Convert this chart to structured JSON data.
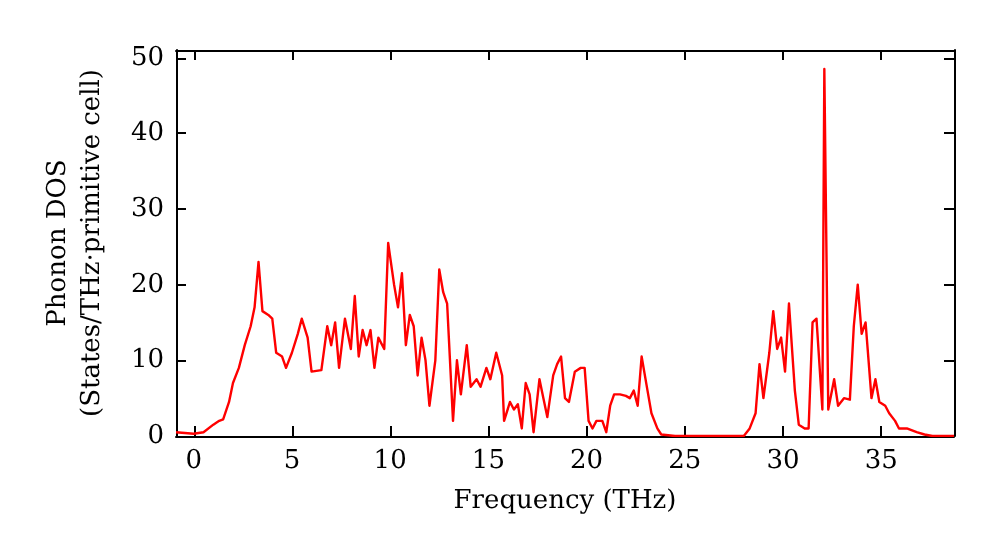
{
  "chart_data": {
    "type": "line",
    "xlabel": "Frequency (THz)",
    "ylabel": "Phonon DOS\n(States/THz·primitive cell)",
    "xlim": [
      -0.9,
      38.7
    ],
    "ylim": [
      0,
      51
    ],
    "xticks": [
      0,
      5,
      10,
      15,
      20,
      25,
      30,
      35
    ],
    "yticks": [
      0,
      10,
      20,
      30,
      40,
      50
    ],
    "grid": false,
    "marker": "none",
    "line_style": "solid",
    "x": [
      -0.9,
      0,
      0.5,
      1,
      1.3,
      1.5,
      1.8,
      2,
      2.3,
      2.6,
      2.9,
      3.1,
      3.3,
      3.5,
      3.8,
      4,
      4.2,
      4.5,
      4.7,
      5,
      5.3,
      5.5,
      5.8,
      6,
      6.5,
      6.8,
      7,
      7.2,
      7.4,
      7.7,
      8,
      8.2,
      8.4,
      8.6,
      8.8,
      9,
      9.2,
      9.4,
      9.7,
      9.9,
      10.2,
      10.4,
      10.6,
      10.8,
      11,
      11.2,
      11.4,
      11.6,
      11.8,
      12,
      12.3,
      12.5,
      12.7,
      12.9,
      13.2,
      13.4,
      13.6,
      13.9,
      14.1,
      14.4,
      14.6,
      14.9,
      15.1,
      15.4,
      15.7,
      15.8,
      16.1,
      16.3,
      16.5,
      16.7,
      16.9,
      17.1,
      17.3,
      17.6,
      17.8,
      18,
      18.3,
      18.5,
      18.7,
      18.9,
      19.1,
      19.4,
      19.7,
      19.9,
      20.1,
      20.3,
      20.5,
      20.8,
      21,
      21.2,
      21.4,
      21.7,
      22,
      22.2,
      22.4,
      22.6,
      22.8,
      23.1,
      23.3,
      23.6,
      23.8,
      24.5,
      28,
      28.3,
      28.6,
      28.8,
      29,
      29.3,
      29.5,
      29.7,
      29.9,
      30.1,
      30.3,
      30.6,
      30.8,
      31.1,
      31.3,
      31.5,
      31.7,
      32,
      32.1,
      32.3,
      32.6,
      32.8,
      33.1,
      33.4,
      33.6,
      33.8,
      34,
      34.2,
      34.5,
      34.7,
      34.9,
      35.2,
      35.4,
      35.7,
      35.9,
      36.3,
      36.8,
      37.2,
      37.6,
      38.7
    ],
    "series": [
      {
        "color": "#ff0000",
        "values": [
          0.5,
          0.3,
          0.5,
          1.5,
          2,
          2.2,
          4.5,
          7,
          9,
          12,
          14.5,
          17,
          23,
          16.5,
          16,
          15.5,
          11,
          10.5,
          9,
          11,
          13.5,
          15.5,
          13,
          8.5,
          8.7,
          14.5,
          12,
          15,
          9,
          15.5,
          11.5,
          18.5,
          10.5,
          14,
          12,
          14,
          9,
          13,
          11.5,
          25.5,
          20,
          17,
          21.5,
          12,
          16,
          14.5,
          8,
          13,
          10,
          4,
          10,
          22,
          19,
          17.5,
          2,
          10,
          5.5,
          12,
          6.5,
          7.5,
          6.5,
          9,
          7.5,
          11,
          8,
          2,
          4.5,
          3.5,
          4.2,
          1,
          7,
          5.5,
          0.5,
          7.5,
          5,
          2.5,
          8,
          9.5,
          10.5,
          5,
          4.5,
          8.5,
          9,
          9,
          2,
          1,
          2,
          2,
          0.5,
          4,
          5.5,
          5.5,
          5.3,
          5,
          6,
          4,
          10.5,
          6,
          3,
          1,
          0.2,
          0,
          0,
          1,
          3,
          9.5,
          5,
          11,
          16.5,
          11.5,
          13,
          8.5,
          17.5,
          6,
          1.5,
          1,
          1,
          15,
          15.5,
          3.5,
          48.5,
          3.5,
          7.5,
          4,
          5,
          4.8,
          14.5,
          20,
          13.5,
          15,
          5,
          7.5,
          4.5,
          4,
          3,
          2,
          1,
          1,
          0.5,
          0.2,
          0,
          0
        ]
      }
    ]
  }
}
